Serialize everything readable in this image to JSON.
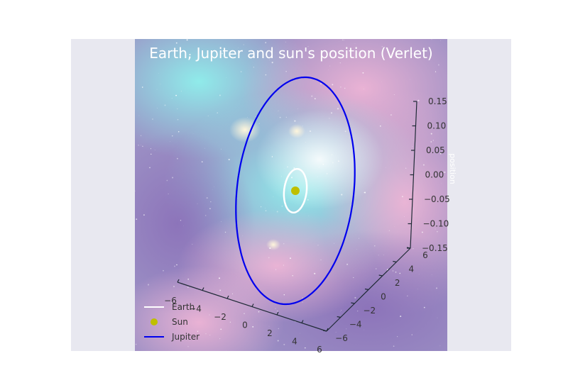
{
  "chart_data": {
    "type": "line",
    "projection": "3d",
    "title": "Earth, Jupiter and sun's position (Verlet)",
    "xlabel": "",
    "ylabel": "",
    "zlabel": "position",
    "xlim": [
      -6,
      6
    ],
    "ylim": [
      -6,
      6
    ],
    "zlim": [
      -0.15,
      0.15
    ],
    "x_ticks": [
      "−6",
      "−4",
      "−2",
      "0",
      "2",
      "4",
      "6"
    ],
    "y_ticks": [
      "−6",
      "−4",
      "−2",
      "0",
      "2",
      "4",
      "6"
    ],
    "z_ticks": [
      "−0.15",
      "−0.10",
      "−0.05",
      "0.00",
      "0.05",
      "0.10",
      "0.15"
    ],
    "background": "nebula image",
    "grid": false,
    "legend_placement": "lower-left",
    "series": [
      {
        "name": "Earth",
        "kind": "orbit",
        "radius_au": 1.0,
        "z": 0.0,
        "color": "#ffffff"
      },
      {
        "name": "Sun",
        "kind": "point",
        "x": 0.0,
        "y": 0.0,
        "z": 0.0,
        "color": "#bfbf00"
      },
      {
        "name": "Jupiter",
        "kind": "orbit",
        "radius_au": 5.2,
        "z": 0.0,
        "color": "#0000ee"
      }
    ]
  }
}
